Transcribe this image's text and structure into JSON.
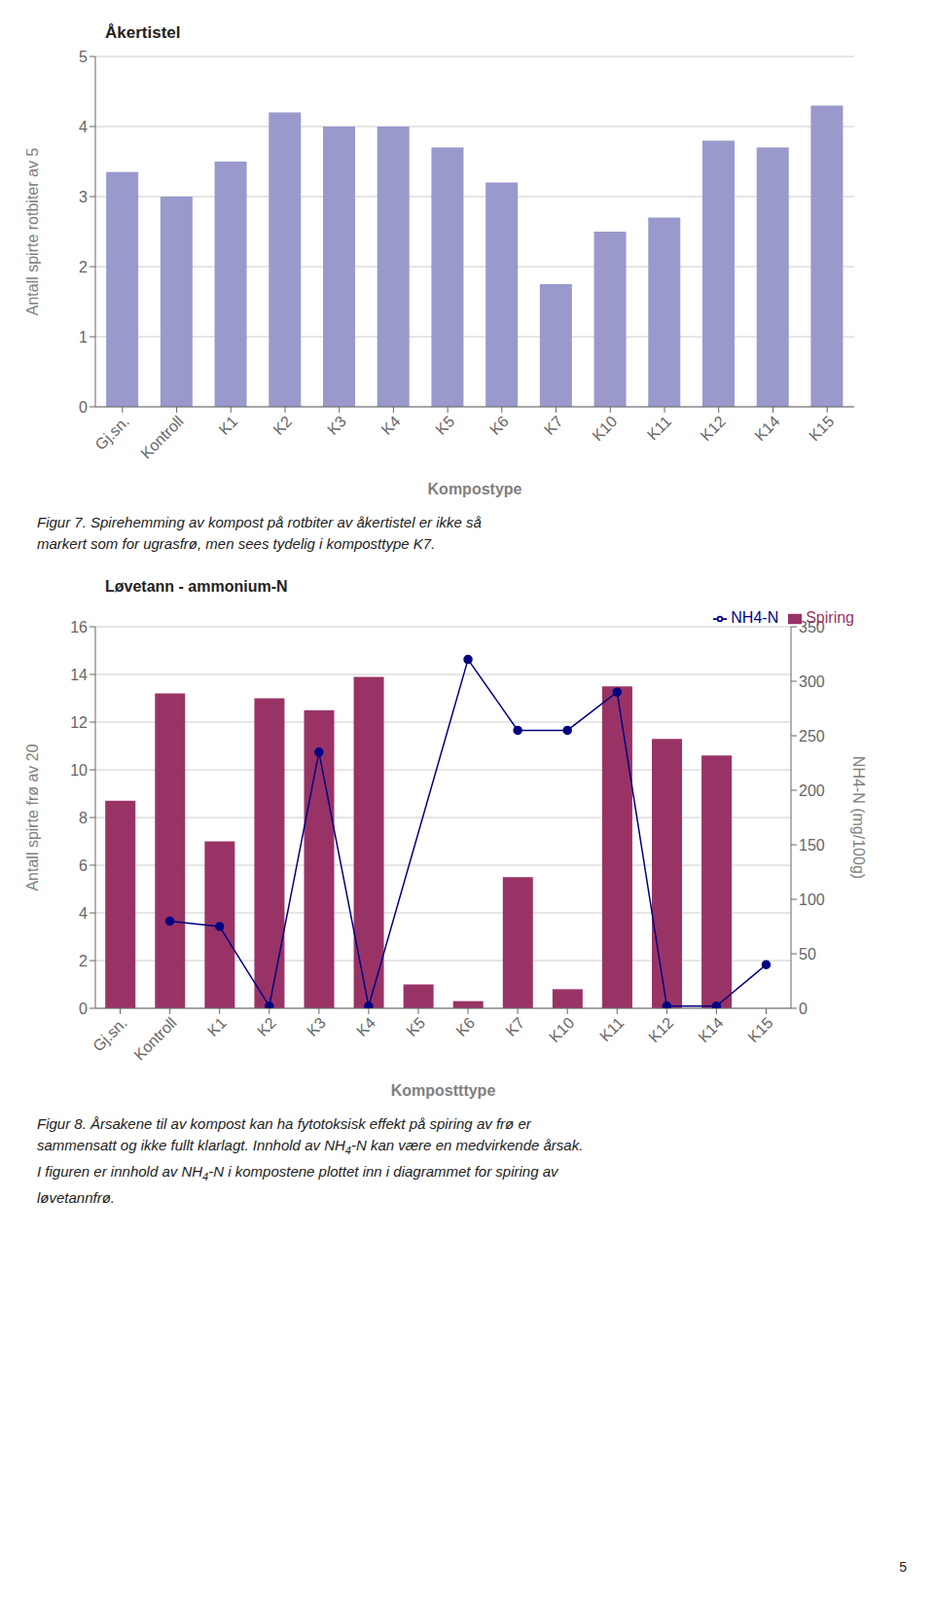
{
  "chart_data": [
    {
      "type": "bar",
      "title": "Åkertistel",
      "xlabel": "Kompostype",
      "ylabel": "Antall spirte rotbiter av 5",
      "categories": [
        "Gj.sn.",
        "Kontroll",
        "K1",
        "K2",
        "K3",
        "K4",
        "K5",
        "K6",
        "K7",
        "K10",
        "K11",
        "K12",
        "K14",
        "K15"
      ],
      "values": [
        3.35,
        3.0,
        3.5,
        4.2,
        4.0,
        4.0,
        3.7,
        3.2,
        1.75,
        2.5,
        2.7,
        3.8,
        3.7,
        4.3
      ],
      "color": "#9999cc",
      "ylim": [
        0,
        5
      ],
      "yticks": [
        0,
        1,
        2,
        3,
        4,
        5
      ],
      "grid": true,
      "annotations": [
        [
          "Figur 7.  Spirehemming av kompost på rotbiter av åkertistel er ikke så"
        ],
        [
          "markert som for ugrasfrø, men sees tydelig i komposttype K7."
        ]
      ]
    },
    {
      "type": "bar",
      "title": "Løvetann - ammonium-N",
      "xlabel": "Kompostttype",
      "ylabel": "Antall spirte frø av 20",
      "y2label": "NH4-N (mg/100g)",
      "categories": [
        "Gj.sn.",
        "Kontroll",
        "K1",
        "K2",
        "K3",
        "K4",
        "K5",
        "K6",
        "K7",
        "K10",
        "K11",
        "K12",
        "K14",
        "K15"
      ],
      "series": [
        {
          "name": "Spiring",
          "type": "bar",
          "color": "#993366",
          "values": [
            8.7,
            13.2,
            7.0,
            13.0,
            12.5,
            13.9,
            1.0,
            0.3,
            5.5,
            0.8,
            13.5,
            11.3,
            10.6,
            0.0
          ]
        },
        {
          "name": "NH4-N",
          "type": "line",
          "axis": "y2",
          "color": "#000080",
          "marker": "o",
          "values": [
            null,
            80.0,
            75.0,
            2.0,
            235.0,
            2.0,
            null,
            320.0,
            255.0,
            255.0,
            290.0,
            2.0,
            2.0,
            40.0
          ]
        }
      ],
      "ylim": [
        0,
        16
      ],
      "yticks": [
        0,
        2,
        4,
        6,
        8,
        10,
        12,
        14,
        16
      ],
      "y2lim": [
        0,
        350
      ],
      "y2ticks": [
        0,
        50,
        100,
        150,
        200,
        250,
        300,
        350
      ],
      "grid": true,
      "legend": "upper right",
      "annotations": [
        [
          "Figur 8.  Årsakene til av kompost kan ha fytotoksisk effekt på spiring av frø er"
        ],
        [
          "sammensatt og ikke fullt klarlagt.  Innhold av NH",
          "4",
          "-N kan være en medvirkende årsak."
        ],
        [
          "I figuren er innhold av NH",
          "4",
          "-N i kompostene plottet inn i diagrammet for spiring av"
        ],
        [
          "løvetannfrø."
        ]
      ]
    }
  ],
  "annotations": [
    [
      "5"
    ]
  ]
}
